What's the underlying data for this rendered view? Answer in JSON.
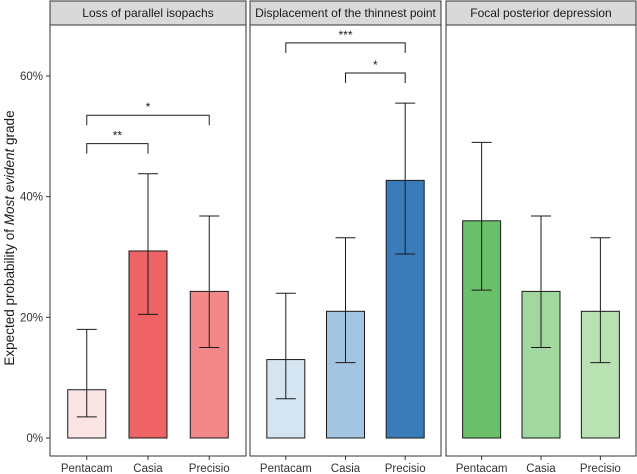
{
  "chart_data": {
    "type": "bar",
    "ylabel_parts": [
      "Expected probability of ",
      "Most evident",
      " grade"
    ],
    "ylim": [
      0,
      0.68
    ],
    "yticks": [
      {
        "value": 0,
        "label": "0%"
      },
      {
        "value": 0.2,
        "label": "20%"
      },
      {
        "value": 0.4,
        "label": "40%"
      },
      {
        "value": 0.6,
        "label": "60%"
      }
    ],
    "panels": [
      {
        "title": "Loss of parallel isopachs",
        "categories": [
          "Pentacam",
          "Casia",
          "Precisio"
        ],
        "values": [
          0.08,
          0.31,
          0.243
        ],
        "lower": [
          0.035,
          0.205,
          0.15
        ],
        "upper": [
          0.18,
          0.438,
          0.368
        ],
        "colors": [
          "#fbe4e4",
          "#ee6366",
          "#f38888"
        ],
        "significance": [
          {
            "from": 0,
            "to": 1,
            "label": "**",
            "y": 0.488
          },
          {
            "from": 0,
            "to": 2,
            "label": "*",
            "y": 0.535
          }
        ]
      },
      {
        "title": "Displacement of the thinnest point",
        "categories": [
          "Pentacam",
          "Casia",
          "Precisio"
        ],
        "values": [
          0.13,
          0.21,
          0.427
        ],
        "lower": [
          0.065,
          0.125,
          0.305
        ],
        "upper": [
          0.24,
          0.332,
          0.555
        ],
        "colors": [
          "#d5e4f1",
          "#a4c5e1",
          "#3a7cb9"
        ],
        "significance": [
          {
            "from": 1,
            "to": 2,
            "label": "*",
            "y": 0.605
          },
          {
            "from": 0,
            "to": 2,
            "label": "***",
            "y": 0.655
          }
        ]
      },
      {
        "title": "Focal posterior depression",
        "categories": [
          "Pentacam",
          "Casia",
          "Precisio"
        ],
        "values": [
          0.36,
          0.243,
          0.21
        ],
        "lower": [
          0.245,
          0.15,
          0.125
        ],
        "upper": [
          0.49,
          0.368,
          0.332
        ],
        "colors": [
          "#6abf6a",
          "#a3d7a0",
          "#b9e2b3"
        ],
        "significance": []
      }
    ]
  }
}
